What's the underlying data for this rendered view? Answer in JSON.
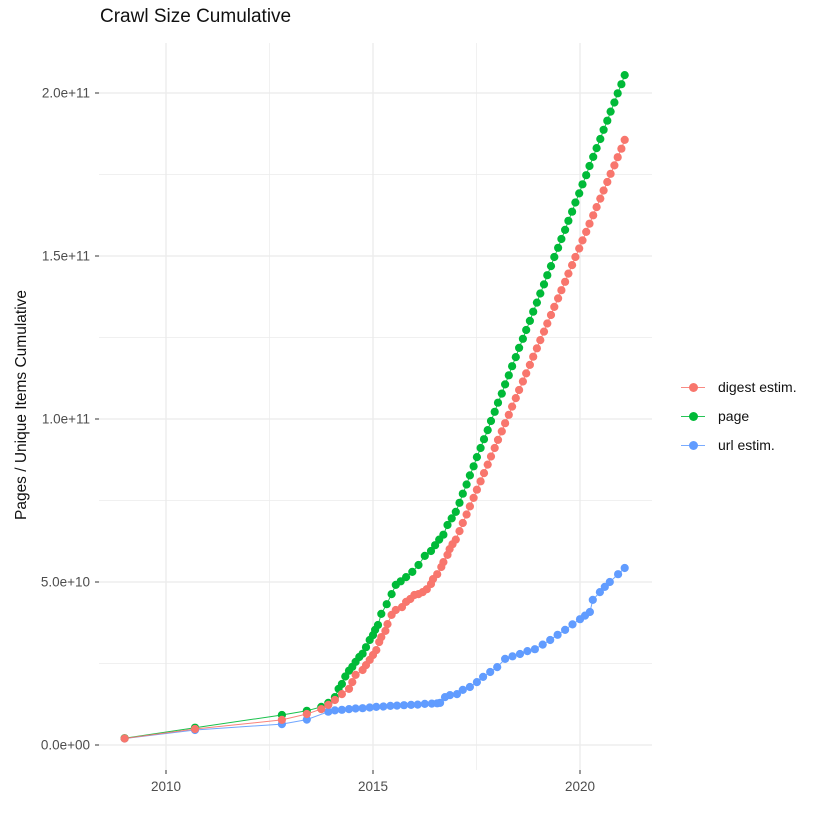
{
  "title": "Crawl Size Cumulative",
  "colors": {
    "background": "#ffffff",
    "gridline": "#ebebeb",
    "tick_label_text": "#4d4d4d",
    "tick_mark": "#333333",
    "title_text": "#111111",
    "digest": "#F8766D",
    "page": "#00BA38",
    "url": "#619CFF"
  },
  "legend": {
    "position": "right",
    "items": [
      {
        "label": "digest estim.",
        "color": "#F8766D"
      },
      {
        "label": "page",
        "color": "#00BA38"
      },
      {
        "label": "url estim.",
        "color": "#619CFF"
      }
    ]
  },
  "chart_data": {
    "type": "scatter",
    "title": "Crawl Size Cumulative",
    "xlabel": "",
    "ylabel": "Pages / Unique Items Cumulative",
    "grid": true,
    "legend_position": "right",
    "value_unit": 10000000000,
    "xlim": [
      2008.5,
      2021.7
    ],
    "ylim_in_units": [
      -0.8,
      21.5
    ],
    "x_ticks": {
      "major": [
        2010,
        2015,
        2020
      ],
      "minor": [
        2012.5,
        2017.5
      ],
      "labels": [
        "2010",
        "2015",
        "2020"
      ]
    },
    "y_ticks": {
      "major": [
        0,
        5,
        10,
        15,
        20
      ],
      "minor": [
        2.5,
        7.5,
        12.5,
        17.5
      ],
      "labels": [
        "0.0e+00",
        "5.0e+10",
        "1.0e+11",
        "1.5e+11",
        "2.0e+11"
      ]
    },
    "series": [
      {
        "name": "url estim.",
        "color": "#619CFF",
        "points": [
          [
            2009.0,
            0.2
          ],
          [
            2010.7,
            0.46
          ],
          [
            2012.8,
            0.64
          ],
          [
            2013.4,
            0.78
          ],
          [
            2013.92,
            1.02
          ],
          [
            2014.08,
            1.06
          ],
          [
            2014.25,
            1.08
          ],
          [
            2014.42,
            1.1
          ],
          [
            2014.58,
            1.12
          ],
          [
            2014.75,
            1.13
          ],
          [
            2014.92,
            1.15
          ],
          [
            2015.08,
            1.17
          ],
          [
            2015.25,
            1.18
          ],
          [
            2015.42,
            1.2
          ],
          [
            2015.58,
            1.21
          ],
          [
            2015.75,
            1.22
          ],
          [
            2015.92,
            1.23
          ],
          [
            2016.08,
            1.24
          ],
          [
            2016.25,
            1.26
          ],
          [
            2016.42,
            1.27
          ],
          [
            2016.55,
            1.28
          ],
          [
            2016.62,
            1.29
          ],
          [
            2016.74,
            1.47
          ],
          [
            2016.86,
            1.53
          ],
          [
            2017.03,
            1.56
          ],
          [
            2017.17,
            1.69
          ],
          [
            2017.34,
            1.78
          ],
          [
            2017.51,
            1.93
          ],
          [
            2017.66,
            2.09
          ],
          [
            2017.83,
            2.24
          ],
          [
            2018.0,
            2.39
          ],
          [
            2018.19,
            2.64
          ],
          [
            2018.37,
            2.72
          ],
          [
            2018.55,
            2.79
          ],
          [
            2018.73,
            2.88
          ],
          [
            2018.91,
            2.94
          ],
          [
            2019.1,
            3.08
          ],
          [
            2019.28,
            3.22
          ],
          [
            2019.46,
            3.38
          ],
          [
            2019.64,
            3.53
          ],
          [
            2019.82,
            3.7
          ],
          [
            2020.0,
            3.86
          ],
          [
            2020.12,
            3.97
          ],
          [
            2020.24,
            4.08
          ],
          [
            2020.31,
            4.45
          ],
          [
            2020.48,
            4.69
          ],
          [
            2020.6,
            4.85
          ],
          [
            2020.72,
            5.0
          ],
          [
            2020.92,
            5.24
          ],
          [
            2021.08,
            5.43
          ]
        ]
      },
      {
        "name": "page",
        "color": "#00BA38",
        "points": [
          [
            2009.0,
            0.21
          ],
          [
            2010.7,
            0.53
          ],
          [
            2012.8,
            0.92
          ],
          [
            2013.4,
            1.05
          ],
          [
            2013.75,
            1.17
          ],
          [
            2013.92,
            1.29
          ],
          [
            2014.08,
            1.47
          ],
          [
            2014.17,
            1.72
          ],
          [
            2014.25,
            1.87
          ],
          [
            2014.33,
            2.1
          ],
          [
            2014.42,
            2.28
          ],
          [
            2014.5,
            2.4
          ],
          [
            2014.58,
            2.55
          ],
          [
            2014.67,
            2.7
          ],
          [
            2014.75,
            2.8
          ],
          [
            2014.83,
            3.0
          ],
          [
            2014.92,
            3.22
          ],
          [
            2015.0,
            3.37
          ],
          [
            2015.05,
            3.53
          ],
          [
            2015.12,
            3.68
          ],
          [
            2015.2,
            4.02
          ],
          [
            2015.33,
            4.32
          ],
          [
            2015.45,
            4.63
          ],
          [
            2015.55,
            4.91
          ],
          [
            2015.67,
            5.02
          ],
          [
            2015.8,
            5.15
          ],
          [
            2015.95,
            5.31
          ],
          [
            2016.1,
            5.52
          ],
          [
            2016.25,
            5.8
          ],
          [
            2016.4,
            5.95
          ],
          [
            2016.5,
            6.13
          ],
          [
            2016.6,
            6.3
          ],
          [
            2016.7,
            6.45
          ],
          [
            2016.8,
            6.75
          ],
          [
            2016.9,
            6.95
          ],
          [
            2017.0,
            7.15
          ],
          [
            2017.09,
            7.43
          ],
          [
            2017.17,
            7.71
          ],
          [
            2017.26,
            7.99
          ],
          [
            2017.34,
            8.27
          ],
          [
            2017.43,
            8.55
          ],
          [
            2017.51,
            8.83
          ],
          [
            2017.6,
            9.11
          ],
          [
            2017.68,
            9.38
          ],
          [
            2017.77,
            9.66
          ],
          [
            2017.85,
            9.94
          ],
          [
            2017.94,
            10.22
          ],
          [
            2018.02,
            10.5
          ],
          [
            2018.11,
            10.78
          ],
          [
            2018.19,
            11.06
          ],
          [
            2018.28,
            11.34
          ],
          [
            2018.36,
            11.62
          ],
          [
            2018.45,
            11.9
          ],
          [
            2018.53,
            12.18
          ],
          [
            2018.62,
            12.46
          ],
          [
            2018.7,
            12.73
          ],
          [
            2018.79,
            13.01
          ],
          [
            2018.87,
            13.29
          ],
          [
            2018.96,
            13.57
          ],
          [
            2019.04,
            13.85
          ],
          [
            2019.13,
            14.13
          ],
          [
            2019.21,
            14.41
          ],
          [
            2019.3,
            14.69
          ],
          [
            2019.38,
            14.97
          ],
          [
            2019.47,
            15.25
          ],
          [
            2019.55,
            15.52
          ],
          [
            2019.64,
            15.8
          ],
          [
            2019.72,
            16.08
          ],
          [
            2019.81,
            16.36
          ],
          [
            2019.89,
            16.64
          ],
          [
            2019.98,
            16.92
          ],
          [
            2020.06,
            17.2
          ],
          [
            2020.15,
            17.48
          ],
          [
            2020.23,
            17.76
          ],
          [
            2020.32,
            18.04
          ],
          [
            2020.4,
            18.31
          ],
          [
            2020.49,
            18.59
          ],
          [
            2020.57,
            18.87
          ],
          [
            2020.66,
            19.15
          ],
          [
            2020.74,
            19.43
          ],
          [
            2020.83,
            19.71
          ],
          [
            2020.91,
            19.99
          ],
          [
            2021.0,
            20.27
          ],
          [
            2021.08,
            20.55
          ]
        ]
      },
      {
        "name": "digest estim.",
        "color": "#F8766D",
        "points": [
          [
            2009.0,
            0.2
          ],
          [
            2010.7,
            0.49
          ],
          [
            2012.8,
            0.77
          ],
          [
            2013.4,
            0.95
          ],
          [
            2013.75,
            1.1
          ],
          [
            2013.92,
            1.23
          ],
          [
            2014.08,
            1.38
          ],
          [
            2014.25,
            1.56
          ],
          [
            2014.42,
            1.72
          ],
          [
            2014.5,
            1.93
          ],
          [
            2014.58,
            2.15
          ],
          [
            2014.75,
            2.3
          ],
          [
            2014.83,
            2.45
          ],
          [
            2014.92,
            2.61
          ],
          [
            2015.0,
            2.76
          ],
          [
            2015.08,
            2.91
          ],
          [
            2015.15,
            3.16
          ],
          [
            2015.2,
            3.31
          ],
          [
            2015.3,
            3.5
          ],
          [
            2015.35,
            3.71
          ],
          [
            2015.45,
            3.99
          ],
          [
            2015.55,
            4.14
          ],
          [
            2015.7,
            4.23
          ],
          [
            2015.8,
            4.39
          ],
          [
            2015.9,
            4.48
          ],
          [
            2016.0,
            4.6
          ],
          [
            2016.1,
            4.63
          ],
          [
            2016.2,
            4.69
          ],
          [
            2016.3,
            4.78
          ],
          [
            2016.4,
            4.94
          ],
          [
            2016.45,
            5.09
          ],
          [
            2016.55,
            5.24
          ],
          [
            2016.65,
            5.46
          ],
          [
            2016.7,
            5.61
          ],
          [
            2016.8,
            5.83
          ],
          [
            2016.85,
            6.01
          ],
          [
            2016.92,
            6.16
          ],
          [
            2017.0,
            6.3
          ],
          [
            2017.09,
            6.56
          ],
          [
            2017.17,
            6.81
          ],
          [
            2017.26,
            7.07
          ],
          [
            2017.34,
            7.32
          ],
          [
            2017.43,
            7.58
          ],
          [
            2017.51,
            7.83
          ],
          [
            2017.6,
            8.09
          ],
          [
            2017.68,
            8.34
          ],
          [
            2017.77,
            8.6
          ],
          [
            2017.85,
            8.85
          ],
          [
            2017.94,
            9.11
          ],
          [
            2018.02,
            9.36
          ],
          [
            2018.11,
            9.62
          ],
          [
            2018.19,
            9.87
          ],
          [
            2018.28,
            10.13
          ],
          [
            2018.36,
            10.38
          ],
          [
            2018.45,
            10.64
          ],
          [
            2018.53,
            10.89
          ],
          [
            2018.62,
            11.15
          ],
          [
            2018.7,
            11.4
          ],
          [
            2018.79,
            11.66
          ],
          [
            2018.87,
            11.91
          ],
          [
            2018.96,
            12.17
          ],
          [
            2019.04,
            12.42
          ],
          [
            2019.13,
            12.68
          ],
          [
            2019.21,
            12.93
          ],
          [
            2019.3,
            13.19
          ],
          [
            2019.38,
            13.44
          ],
          [
            2019.47,
            13.7
          ],
          [
            2019.55,
            13.95
          ],
          [
            2019.64,
            14.21
          ],
          [
            2019.72,
            14.46
          ],
          [
            2019.81,
            14.72
          ],
          [
            2019.89,
            14.97
          ],
          [
            2019.98,
            15.23
          ],
          [
            2020.06,
            15.48
          ],
          [
            2020.15,
            15.74
          ],
          [
            2020.23,
            15.99
          ],
          [
            2020.32,
            16.25
          ],
          [
            2020.4,
            16.5
          ],
          [
            2020.49,
            16.76
          ],
          [
            2020.57,
            17.01
          ],
          [
            2020.66,
            17.27
          ],
          [
            2020.74,
            17.52
          ],
          [
            2020.83,
            17.78
          ],
          [
            2020.91,
            18.03
          ],
          [
            2021.0,
            18.29
          ],
          [
            2021.08,
            18.56
          ]
        ]
      }
    ]
  }
}
